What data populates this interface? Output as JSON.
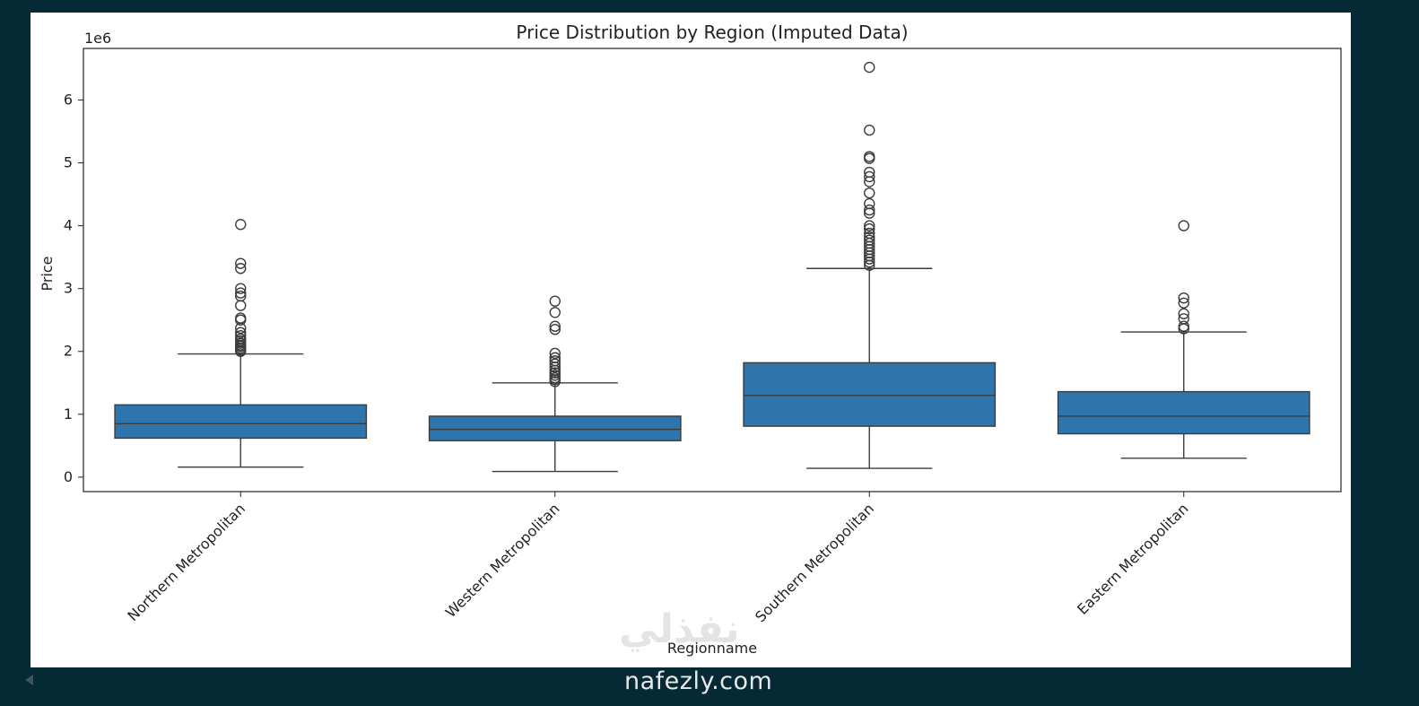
{
  "watermark": {
    "arabic_text": "نفذلي",
    "url_text": "nafezly.com"
  },
  "colors": {
    "page_background": "#062a35",
    "box_fill": "#2e74ad",
    "line": "#3c3c3c"
  },
  "chart_data": {
    "type": "box",
    "title": "Price Distribution by Region (Imputed Data)",
    "xlabel": "Regionname",
    "ylabel": "Price",
    "y_offset_text": "1e6",
    "ylim": [
      -0.23,
      6.82
    ],
    "yticks": [
      0,
      1,
      2,
      3,
      4,
      5,
      6
    ],
    "ytick_labels": [
      "0",
      "1",
      "2",
      "3",
      "4",
      "5",
      "6"
    ],
    "categories": [
      "Northern Metropolitan",
      "Western Metropolitan",
      "Southern Metropolitan",
      "Eastern Metropolitan"
    ],
    "grid": false,
    "boxes": [
      {
        "category": "Northern Metropolitan",
        "whislo": 0.16,
        "q1": 0.62,
        "med": 0.85,
        "q3": 1.15,
        "whishi": 1.96,
        "fliers": [
          2.0,
          2.02,
          2.05,
          2.08,
          2.1,
          2.13,
          2.17,
          2.2,
          2.25,
          2.3,
          2.37,
          2.5,
          2.53,
          2.73,
          2.88,
          2.93,
          3.0,
          3.32,
          3.4,
          4.02
        ]
      },
      {
        "category": "Western Metropolitan",
        "whislo": 0.09,
        "q1": 0.58,
        "med": 0.76,
        "q3": 0.97,
        "whishi": 1.5,
        "fliers": [
          1.52,
          1.55,
          1.58,
          1.62,
          1.66,
          1.7,
          1.75,
          1.8,
          1.85,
          1.9,
          1.97,
          2.35,
          2.4,
          2.62,
          2.8
        ]
      },
      {
        "category": "Southern Metropolitan",
        "whislo": 0.14,
        "q1": 0.81,
        "med": 1.3,
        "q3": 1.82,
        "whishi": 3.32,
        "fliers": [
          3.37,
          3.42,
          3.47,
          3.52,
          3.57,
          3.62,
          3.67,
          3.72,
          3.77,
          3.82,
          3.88,
          3.95,
          4.0,
          4.2,
          4.25,
          4.35,
          4.52,
          4.7,
          4.78,
          4.85,
          5.07,
          5.1,
          5.52,
          6.52
        ]
      },
      {
        "category": "Eastern Metropolitan",
        "whislo": 0.3,
        "q1": 0.69,
        "med": 0.97,
        "q3": 1.36,
        "whishi": 2.31,
        "fliers": [
          2.36,
          2.4,
          2.52,
          2.6,
          2.77,
          2.85,
          4.0
        ]
      }
    ]
  }
}
